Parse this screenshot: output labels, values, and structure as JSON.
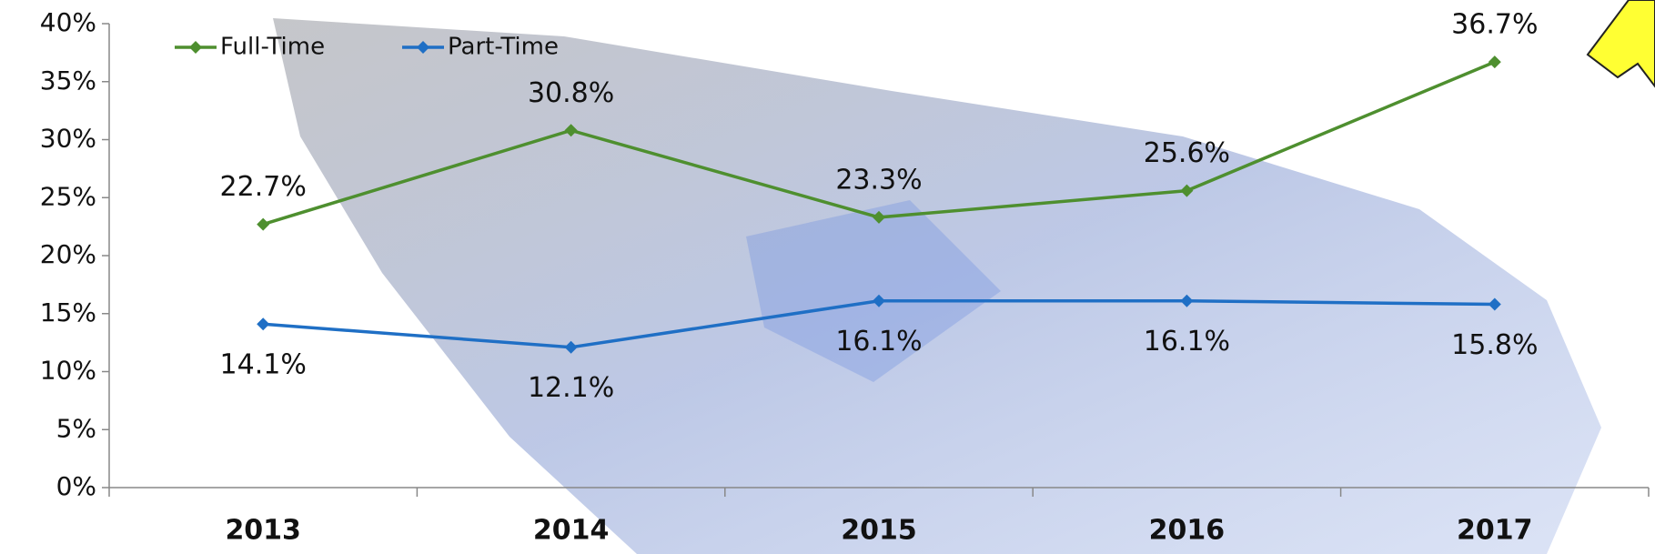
{
  "chart_data": {
    "type": "line",
    "categories": [
      "2013",
      "2014",
      "2015",
      "2016",
      "2017"
    ],
    "series": [
      {
        "name": "Full-Time",
        "color": "#4e8f2f",
        "values": [
          22.7,
          30.8,
          23.3,
          25.6,
          36.7
        ],
        "value_labels": [
          "22.7%",
          "30.8%",
          "23.3%",
          "25.6%",
          "36.7%"
        ]
      },
      {
        "name": "Part-Time",
        "color": "#1f6fc5",
        "values": [
          14.1,
          12.1,
          16.1,
          16.1,
          15.8
        ],
        "value_labels": [
          "14.1%",
          "12.1%",
          "16.1%",
          "16.1%",
          "15.8%"
        ]
      }
    ],
    "ylim": [
      0,
      40
    ],
    "yticks": [
      {
        "value": 0,
        "label": "0%"
      },
      {
        "value": 5,
        "label": "5%"
      },
      {
        "value": 10,
        "label": "10%"
      },
      {
        "value": 15,
        "label": "15%"
      },
      {
        "value": 20,
        "label": "20%"
      },
      {
        "value": 25,
        "label": "25%"
      },
      {
        "value": 30,
        "label": "30%"
      },
      {
        "value": 35,
        "label": "35%"
      },
      {
        "value": 40,
        "label": "40%"
      }
    ],
    "legend": "upper left"
  }
}
